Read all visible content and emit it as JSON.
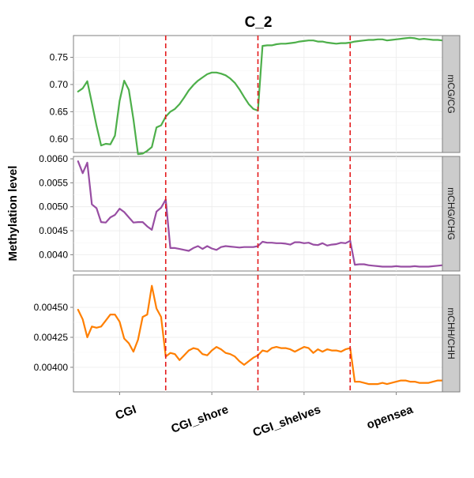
{
  "chart_data": {
    "type": "line",
    "title": "C_2",
    "xlabel": "",
    "ylabel": "Methylation level",
    "categories": [
      "CGI",
      "CGI_shore",
      "CGI_shelves",
      "opensea"
    ],
    "x_range": [
      0,
      80
    ],
    "boundaries": [
      20,
      40,
      60
    ],
    "boundary_color": "#e41a1c",
    "grid": true,
    "panels": [
      {
        "name": "mCG/CG",
        "color": "#4daf4a",
        "ylim": [
          0.575,
          0.79
        ],
        "yticks": [
          0.6,
          0.65,
          0.7,
          0.75
        ],
        "ytick_labels": [
          "0.60",
          "0.65",
          "0.70",
          "0.75"
        ],
        "x": [
          1,
          2,
          3,
          4,
          5,
          6,
          7,
          8,
          9,
          10,
          11,
          12,
          13,
          14,
          15,
          16,
          17,
          18,
          19,
          20,
          21,
          22,
          23,
          24,
          25,
          26,
          27,
          28,
          29,
          30,
          31,
          32,
          33,
          34,
          35,
          36,
          37,
          38,
          39,
          40,
          41,
          42,
          43,
          44,
          45,
          46,
          47,
          48,
          49,
          50,
          51,
          52,
          53,
          54,
          55,
          56,
          57,
          58,
          59,
          60,
          61,
          62,
          63,
          64,
          65,
          66,
          67,
          68,
          69,
          70,
          71,
          72,
          73,
          74,
          75,
          76,
          77,
          78,
          79,
          80
        ],
        "values": [
          0.687,
          0.693,
          0.706,
          0.666,
          0.624,
          0.588,
          0.591,
          0.59,
          0.606,
          0.67,
          0.707,
          0.69,
          0.636,
          0.572,
          0.573,
          0.578,
          0.585,
          0.621,
          0.625,
          0.641,
          0.65,
          0.655,
          0.664,
          0.676,
          0.689,
          0.699,
          0.707,
          0.713,
          0.719,
          0.722,
          0.722,
          0.72,
          0.717,
          0.711,
          0.703,
          0.691,
          0.677,
          0.664,
          0.655,
          0.652,
          0.771,
          0.772,
          0.772,
          0.774,
          0.775,
          0.775,
          0.776,
          0.777,
          0.779,
          0.78,
          0.781,
          0.781,
          0.779,
          0.779,
          0.777,
          0.776,
          0.775,
          0.776,
          0.776,
          0.777,
          0.779,
          0.78,
          0.781,
          0.782,
          0.782,
          0.783,
          0.783,
          0.781,
          0.782,
          0.783,
          0.784,
          0.785,
          0.786,
          0.785,
          0.783,
          0.784,
          0.783,
          0.782,
          0.782,
          0.781
        ]
      },
      {
        "name": "mCHG/CHG",
        "color": "#984ea3",
        "ylim": [
          0.00366,
          0.00605
        ],
        "yticks": [
          0.004,
          0.0045,
          0.005,
          0.0055,
          0.006
        ],
        "ytick_labels": [
          "0.0040",
          "0.0045",
          "0.0050",
          "0.0055",
          "0.0060"
        ],
        "x": [
          1,
          2,
          3,
          4,
          5,
          6,
          7,
          8,
          9,
          10,
          11,
          12,
          13,
          14,
          15,
          16,
          17,
          18,
          19,
          20,
          21,
          22,
          23,
          24,
          25,
          26,
          27,
          28,
          29,
          30,
          31,
          32,
          33,
          34,
          35,
          36,
          37,
          38,
          39,
          40,
          41,
          42,
          43,
          44,
          45,
          46,
          47,
          48,
          49,
          50,
          51,
          52,
          53,
          54,
          55,
          56,
          57,
          58,
          59,
          60,
          61,
          62,
          63,
          64,
          65,
          66,
          67,
          68,
          69,
          70,
          71,
          72,
          73,
          74,
          75,
          76,
          77,
          78,
          79,
          80
        ],
        "values": [
          0.00595,
          0.0057,
          0.00592,
          0.00505,
          0.00497,
          0.00468,
          0.00467,
          0.00478,
          0.00483,
          0.00496,
          0.00489,
          0.00478,
          0.00467,
          0.00468,
          0.00468,
          0.00459,
          0.00452,
          0.0049,
          0.00498,
          0.00515,
          0.00414,
          0.00414,
          0.00412,
          0.0041,
          0.00408,
          0.00414,
          0.00418,
          0.00412,
          0.00418,
          0.00413,
          0.0041,
          0.00416,
          0.00418,
          0.00417,
          0.00416,
          0.00415,
          0.00416,
          0.00416,
          0.00416,
          0.00418,
          0.00427,
          0.00425,
          0.00425,
          0.00424,
          0.00424,
          0.00423,
          0.00421,
          0.00426,
          0.00426,
          0.00424,
          0.00425,
          0.00421,
          0.0042,
          0.00424,
          0.00419,
          0.00421,
          0.00422,
          0.00425,
          0.00424,
          0.00429,
          0.00379,
          0.0038,
          0.0038,
          0.00378,
          0.00377,
          0.00376,
          0.00375,
          0.00375,
          0.00375,
          0.00376,
          0.00375,
          0.00375,
          0.00375,
          0.00376,
          0.00375,
          0.00375,
          0.00375,
          0.00376,
          0.00377,
          0.00378
        ]
      },
      {
        "name": "mCHH/CHH",
        "color": "#ff7f00",
        "ylim": [
          0.003795,
          0.00477
        ],
        "yticks": [
          0.004,
          0.00425,
          0.0045
        ],
        "ytick_labels": [
          "0.00400",
          "0.00425",
          "0.00450"
        ],
        "x": [
          1,
          2,
          3,
          4,
          5,
          6,
          7,
          8,
          9,
          10,
          11,
          12,
          13,
          14,
          15,
          16,
          17,
          18,
          19,
          20,
          21,
          22,
          23,
          24,
          25,
          26,
          27,
          28,
          29,
          30,
          31,
          32,
          33,
          34,
          35,
          36,
          37,
          38,
          39,
          40,
          41,
          42,
          43,
          44,
          45,
          46,
          47,
          48,
          49,
          50,
          51,
          52,
          53,
          54,
          55,
          56,
          57,
          58,
          59,
          60,
          61,
          62,
          63,
          64,
          65,
          66,
          67,
          68,
          69,
          70,
          71,
          72,
          73,
          74,
          75,
          76,
          77,
          78,
          79,
          80
        ],
        "values": [
          0.00448,
          0.0044,
          0.00425,
          0.00434,
          0.00433,
          0.00434,
          0.00439,
          0.00444,
          0.00444,
          0.00438,
          0.00424,
          0.0042,
          0.00413,
          0.00423,
          0.00442,
          0.00444,
          0.00468,
          0.00449,
          0.00442,
          0.00409,
          0.00412,
          0.00411,
          0.00406,
          0.0041,
          0.00414,
          0.00416,
          0.00415,
          0.00411,
          0.0041,
          0.00414,
          0.00417,
          0.00415,
          0.00412,
          0.00411,
          0.00409,
          0.00405,
          0.00402,
          0.00405,
          0.00408,
          0.0041,
          0.00414,
          0.00413,
          0.00416,
          0.00417,
          0.00416,
          0.00416,
          0.00415,
          0.00413,
          0.00415,
          0.00417,
          0.00416,
          0.00412,
          0.00415,
          0.00413,
          0.00415,
          0.00414,
          0.00414,
          0.00413,
          0.00415,
          0.00416,
          0.00388,
          0.00388,
          0.00387,
          0.00386,
          0.00386,
          0.00386,
          0.00387,
          0.00386,
          0.00387,
          0.00388,
          0.00389,
          0.00389,
          0.00388,
          0.00388,
          0.00387,
          0.00387,
          0.00387,
          0.00388,
          0.00389,
          0.00389
        ]
      }
    ]
  }
}
